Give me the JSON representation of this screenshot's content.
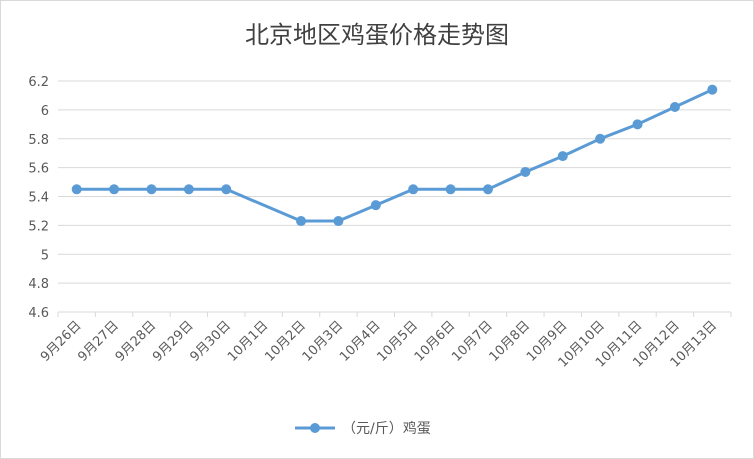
{
  "chart_data": {
    "type": "line",
    "title": "北京地区鸡蛋价格走势图",
    "categories": [
      "9月26日",
      "9月27日",
      "9月28日",
      "9月29日",
      "9月30日",
      "10月1日",
      "10月2日",
      "10月3日",
      "10月4日",
      "10月5日",
      "10月6日",
      "10月7日",
      "10月8日",
      "10月9日",
      "10月10日",
      "10月11日",
      "10月12日",
      "10月13日"
    ],
    "series": [
      {
        "name": "（元/斤）鸡蛋",
        "values": [
          5.45,
          5.45,
          5.45,
          5.45,
          5.45,
          null,
          5.23,
          5.23,
          5.34,
          5.45,
          5.45,
          5.45,
          5.57,
          5.68,
          5.8,
          5.9,
          6.02,
          6.14
        ]
      }
    ],
    "ylim": [
      4.6,
      6.2
    ],
    "yticks": [
      "4.6",
      "4.8",
      "5",
      "5.2",
      "5.4",
      "5.6",
      "5.8",
      "6",
      "6.2"
    ],
    "grid": true,
    "legend_position": "bottom",
    "series_color": "#5b9bd5"
  }
}
